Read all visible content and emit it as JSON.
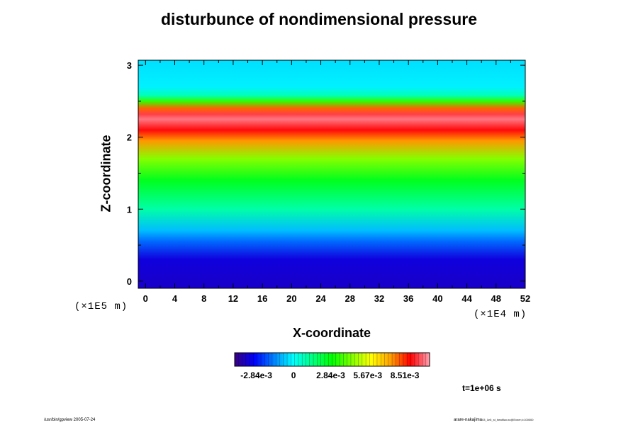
{
  "title": "disturbunce of nondimensional pressure",
  "x_axis": {
    "label": "X-coordinate",
    "unit": "(×1E4 m)"
  },
  "y_axis": {
    "label": "Z-coordinate",
    "unit": "(×1E5 m)"
  },
  "time_label": "t=1e+06 s",
  "footer": {
    "left": "/usr/bin/gpview 2005-07-24",
    "right_user": "arare-nakajima",
    "right_file": "03_1e5_st_heatflux.nc@Exner,t=100000"
  },
  "chart_data": {
    "type": "heatmap",
    "title": "disturbunce of nondimensional pressure",
    "xlabel": "X-coordinate",
    "ylabel": "Z-coordinate",
    "xlim": [
      -1,
      52
    ],
    "ylim": [
      -0.1,
      3.07
    ],
    "x_ticks": [
      0,
      4,
      8,
      12,
      16,
      20,
      24,
      28,
      32,
      36,
      40,
      44,
      48,
      52
    ],
    "x_tick_labels": [
      "0",
      "4",
      "8",
      "12",
      "16",
      "20",
      "24",
      "28",
      "32",
      "36",
      "40",
      "44",
      "48",
      "52"
    ],
    "x_minor_ticks": [
      2,
      6,
      10,
      14,
      18,
      22,
      26,
      30,
      34,
      38,
      42,
      46,
      50
    ],
    "y_ticks": [
      0,
      1,
      2,
      3
    ],
    "y_tick_labels": [
      "0",
      "1",
      "2",
      "3"
    ],
    "y_minor_ticks": [
      0.5,
      1.5,
      2.5
    ],
    "z_profile": {
      "z": [
        0,
        0.3,
        0.55,
        0.7,
        1.0,
        1.4,
        1.7,
        1.95,
        2.1,
        2.25,
        2.32,
        2.4,
        2.5,
        2.58,
        2.7,
        3.07
      ],
      "value": [
        -0.0036,
        -0.0034,
        -0.0018,
        -0.0008,
        0.001,
        0.0026,
        0.0045,
        0.0075,
        0.009,
        0.01,
        0.0095,
        0.008,
        0.0035,
        0.0008,
        -0.0002,
        -0.0004
      ]
    },
    "colorbar": {
      "min": -0.0045,
      "max": 0.0104,
      "ticks": [
        -0.00284,
        0,
        0.00284,
        0.00567,
        0.00851
      ],
      "tick_labels": [
        "-2.84e-3",
        "0",
        "2.84e-3",
        "5.67e-3",
        "8.51e-3"
      ],
      "colors": [
        "#3a007f",
        "#0000ff",
        "#0080ff",
        "#00ffff",
        "#00ff80",
        "#00ff00",
        "#80ff00",
        "#ffff00",
        "#ffa000",
        "#ff0000",
        "#ffa0b0"
      ]
    }
  }
}
